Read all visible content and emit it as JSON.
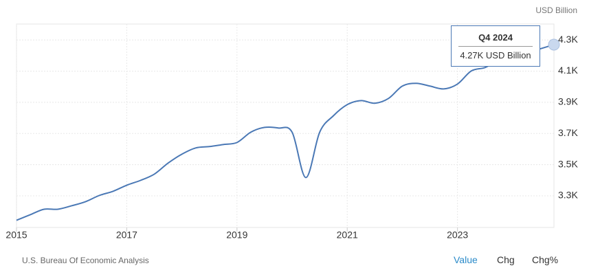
{
  "chart_data": {
    "type": "line",
    "unit": "USD Billion",
    "x": [
      2015,
      2015.25,
      2015.5,
      2015.75,
      2016,
      2016.25,
      2016.5,
      2016.75,
      2017,
      2017.25,
      2017.5,
      2017.75,
      2018,
      2018.25,
      2018.5,
      2018.75,
      2019,
      2019.25,
      2019.5,
      2019.75,
      2020,
      2020.25,
      2020.5,
      2020.75,
      2021,
      2021.25,
      2021.5,
      2021.75,
      2022,
      2022.25,
      2022.5,
      2022.75,
      2023,
      2023.25,
      2023.5,
      2023.75,
      2024,
      2024.25,
      2024.5,
      2024.75
    ],
    "series": [
      {
        "color": "#4a78b5",
        "values": [
          3143,
          3179,
          3214,
          3214,
          3236,
          3262,
          3302,
          3329,
          3368,
          3399,
          3439,
          3510,
          3567,
          3607,
          3616,
          3629,
          3642,
          3708,
          3739,
          3735,
          3708,
          3417,
          3708,
          3814,
          3885,
          3911,
          3894,
          3925,
          4004,
          4022,
          4004,
          3986,
          4017,
          4101,
          4123,
          4168,
          4194,
          4216,
          4243,
          4270
        ]
      }
    ],
    "xlim": [
      2015,
      2024.75
    ],
    "xticks": [
      2015,
      2017,
      2019,
      2021,
      2023
    ],
    "ylim": [
      3097,
      4402
    ],
    "yticks": [
      {
        "value": 3300,
        "label": "3.3K"
      },
      {
        "value": 3500,
        "label": "3.5K"
      },
      {
        "value": 3700,
        "label": "3.7K"
      },
      {
        "value": 3900,
        "label": "3.9K"
      },
      {
        "value": 4100,
        "label": "4.1K"
      },
      {
        "value": 4300,
        "label": "4.3K"
      }
    ],
    "grid": true,
    "tooltip": {
      "title": "Q4 2024",
      "text": "4.27K USD Billion"
    }
  },
  "source": "U.S. Bureau Of Economic Analysis",
  "tabs": [
    "Value",
    "Chg",
    "Chg%"
  ]
}
